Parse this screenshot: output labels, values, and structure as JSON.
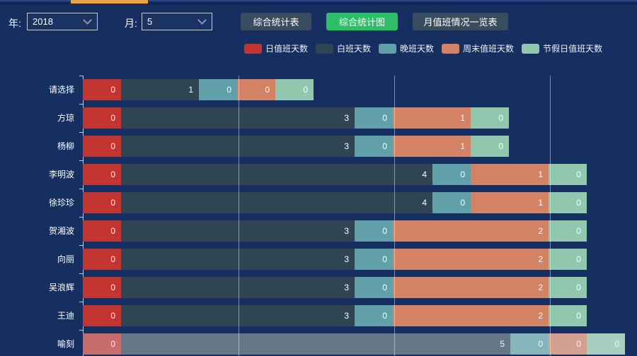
{
  "colors": {
    "background": "#172f60",
    "accent_green": "#2ebd6b",
    "button_slate": "#384d60",
    "scroll_thumb_orange": "#e9a44e"
  },
  "filters": {
    "year_label": "年:",
    "year_value": "2018",
    "month_label": "月:",
    "month_value": "5"
  },
  "buttons": [
    {
      "label": "综合统计表",
      "active": false
    },
    {
      "label": "综合统计图",
      "active": true
    },
    {
      "label": "月值班情况一览表",
      "active": false
    }
  ],
  "chart_data": {
    "type": "bar",
    "orientation": "horizontal",
    "stacked": true,
    "title": "",
    "xlabel": "",
    "ylabel": "",
    "legend_position": "top-center",
    "grid": true,
    "gridlines_at_values": [
      2,
      4,
      6
    ],
    "xlim": [
      0,
      6.5
    ],
    "categories": [
      "请选择",
      "方琼",
      "杨柳",
      "李明波",
      "徐珍珍",
      "贺湘波",
      "向丽",
      "吴浪辉",
      "王迪",
      "喻刻"
    ],
    "series": [
      {
        "name": "日值班天数",
        "color": "#c23531",
        "values": [
          0,
          0,
          0,
          0,
          0,
          0,
          0,
          0,
          0,
          0
        ]
      },
      {
        "name": "白班天数",
        "color": "#2f4554",
        "values": [
          1,
          3,
          3,
          4,
          4,
          3,
          3,
          3,
          3,
          5
        ]
      },
      {
        "name": "晚班天数",
        "color": "#61a0a8",
        "values": [
          0,
          0,
          0,
          0,
          0,
          0,
          0,
          0,
          0,
          0
        ]
      },
      {
        "name": "周末值班天数",
        "color": "#d48265",
        "values": [
          0,
          1,
          1,
          1,
          1,
          2,
          2,
          2,
          2,
          0
        ]
      },
      {
        "name": "节假日值班天数",
        "color": "#91c7ae",
        "values": [
          0,
          0,
          0,
          0,
          0,
          0,
          0,
          0,
          0,
          0
        ]
      }
    ],
    "dimmed_row_index": 9,
    "value_labels": "inside-right"
  }
}
